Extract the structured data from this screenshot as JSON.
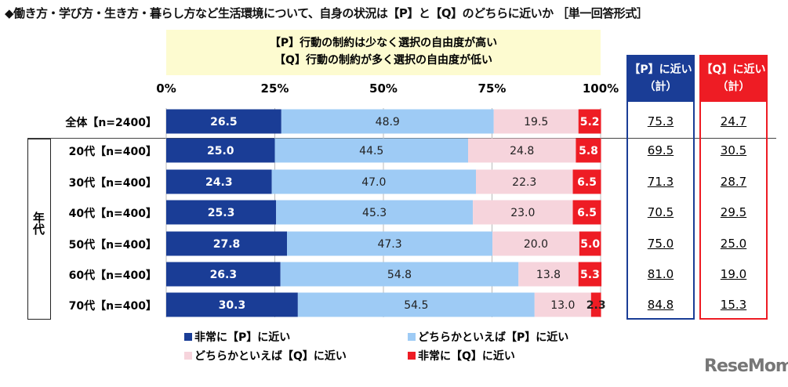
{
  "title": "◆働き方・学び方・生き方・暮らし方など生活環境について、自身の状況は【P】と【Q】のどちらに近いか ［単一回答形式］",
  "definitions": {
    "p": "【P】行動の制約は少なく選択の自由度が高い",
    "q": "【Q】行動の制約が多く選択の自由度が低い"
  },
  "group_label": "年代",
  "summary_headers": {
    "p": "【P】に近い（計）",
    "q": "【Q】に近い（計）"
  },
  "colors": {
    "very_p": "#1a3d96",
    "somewhat_p": "#9ecbf5",
    "somewhat_q": "#f6d4dc",
    "very_q": "#ee1c24",
    "p_box": "#1a3d96",
    "q_box": "#ee1c24"
  },
  "watermark": "ReseMom",
  "chart_data": {
    "type": "bar",
    "orientation": "horizontal",
    "stacked": true,
    "xlim": [
      0,
      100
    ],
    "tick_labels": [
      "0%",
      "25%",
      "50%",
      "75%",
      "100%"
    ],
    "grid": true,
    "legend": "bottom",
    "categories": [
      "全体【n=2400】",
      "20代【n=400】",
      "30代【n=400】",
      "40代【n=400】",
      "50代【n=400】",
      "60代【n=400】",
      "70代【n=400】"
    ],
    "series": [
      {
        "name": "非常に【P】に近い",
        "values": [
          26.5,
          25.0,
          24.3,
          25.3,
          27.8,
          26.3,
          30.3
        ]
      },
      {
        "name": "どちらかといえば【P】に近い",
        "values": [
          48.9,
          44.5,
          47.0,
          45.3,
          47.3,
          54.8,
          54.5
        ]
      },
      {
        "name": "どちらかといえば【Q】に近い",
        "values": [
          19.5,
          24.8,
          22.3,
          23.0,
          20.0,
          13.8,
          13.0
        ]
      },
      {
        "name": "非常に【Q】に近い",
        "values": [
          5.2,
          5.8,
          6.5,
          6.5,
          5.0,
          5.3,
          2.3
        ]
      }
    ],
    "p_total": [
      75.3,
      69.5,
      71.3,
      70.5,
      75.0,
      81.0,
      84.8
    ],
    "q_total": [
      24.7,
      30.5,
      28.7,
      29.5,
      25.0,
      19.0,
      15.3
    ]
  }
}
